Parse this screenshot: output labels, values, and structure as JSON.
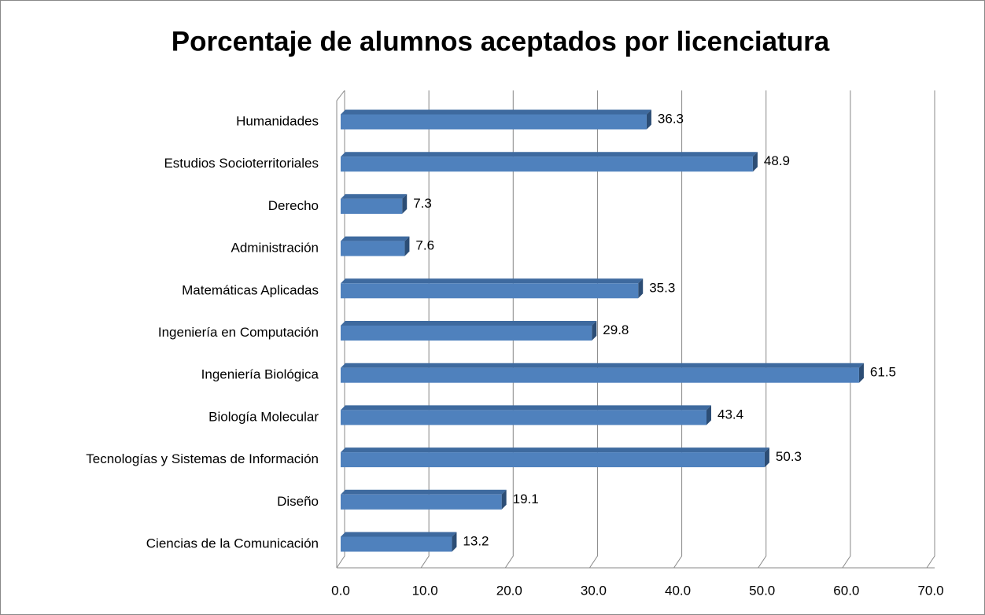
{
  "chart_data": {
    "type": "bar3d-horizontal",
    "title": "Porcentaje de alumnos aceptados por licenciatura",
    "categories": [
      "Humanidades",
      "Estudios Socioterritoriales",
      "Derecho",
      "Administración",
      "Matemáticas Aplicadas",
      "Ingeniería en Computación",
      "Ingeniería Biológica",
      "Biología Molecular",
      "Tecnologías y Sistemas de Información",
      "Diseño",
      "Ciencias de la Comunicación"
    ],
    "values": [
      36.3,
      48.9,
      7.3,
      7.6,
      35.3,
      29.8,
      61.5,
      43.4,
      50.3,
      19.1,
      13.2
    ],
    "color": "#4f81bd",
    "xlim": [
      0,
      70
    ],
    "xticks": [
      {
        "value": 0,
        "label": "0.0"
      },
      {
        "value": 10,
        "label": "10.0"
      },
      {
        "value": 20,
        "label": "20.0"
      },
      {
        "value": 30,
        "label": "30.0"
      },
      {
        "value": 40,
        "label": "40.0"
      },
      {
        "value": 50,
        "label": "50.0"
      },
      {
        "value": 60,
        "label": "60.0"
      },
      {
        "value": 70,
        "label": "70.0"
      }
    ],
    "grid": true
  }
}
